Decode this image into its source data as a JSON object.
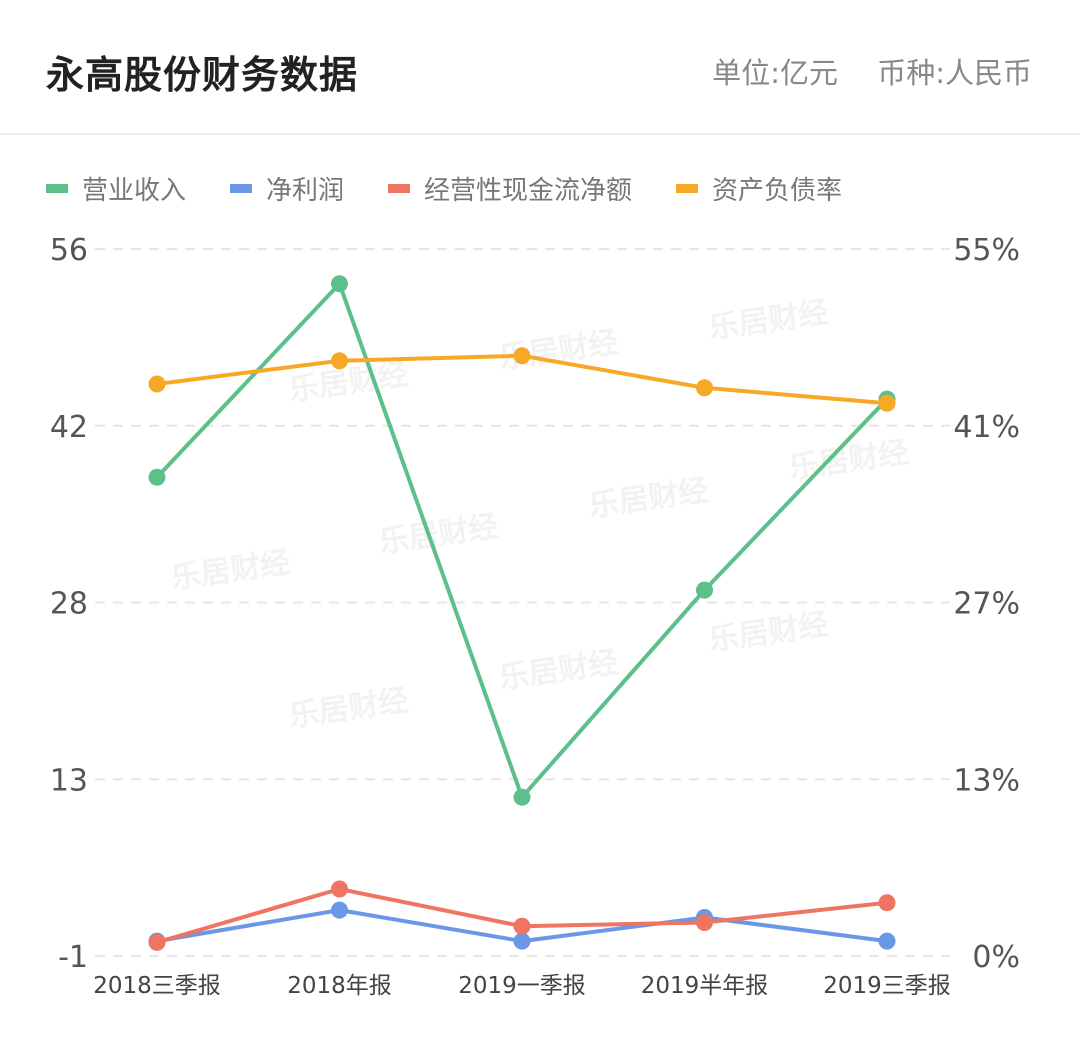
{
  "header": {
    "title": "永高股份财务数据",
    "unit": "单位:亿元",
    "currency": "币种:人民币"
  },
  "chart_data": {
    "type": "line",
    "categories": [
      "2018三季报",
      "2018年报",
      "2019一季报",
      "2019半年报",
      "2019三季报"
    ],
    "left_axis": {
      "ticks": [
        "56",
        "42",
        "28",
        "13",
        "-1"
      ],
      "range": [
        -1,
        56
      ]
    },
    "right_axis": {
      "ticks": [
        "55%",
        "41%",
        "27%",
        "13%",
        "0%"
      ],
      "range": [
        0,
        55
      ]
    },
    "grid": true,
    "legend_position": "top-left",
    "series": [
      {
        "name": "营业收入",
        "axis": "left",
        "color": "#5dbf8a",
        "values": [
          37.6,
          53.2,
          11.8,
          28.5,
          43.9
        ]
      },
      {
        "name": "净利润",
        "axis": "left",
        "color": "#6a97e6",
        "values": [
          0.2,
          2.7,
          0.2,
          2.1,
          0.2
        ]
      },
      {
        "name": "经营性现金流净额",
        "axis": "left",
        "color": "#f07462",
        "values": [
          0.1,
          4.4,
          1.4,
          1.7,
          3.3
        ]
      },
      {
        "name": "资产负债率",
        "axis": "right",
        "color": "#f7a826",
        "values": [
          44.5,
          46.3,
          46.7,
          44.2,
          43.0
        ]
      }
    ],
    "watermark": "乐居财经"
  }
}
